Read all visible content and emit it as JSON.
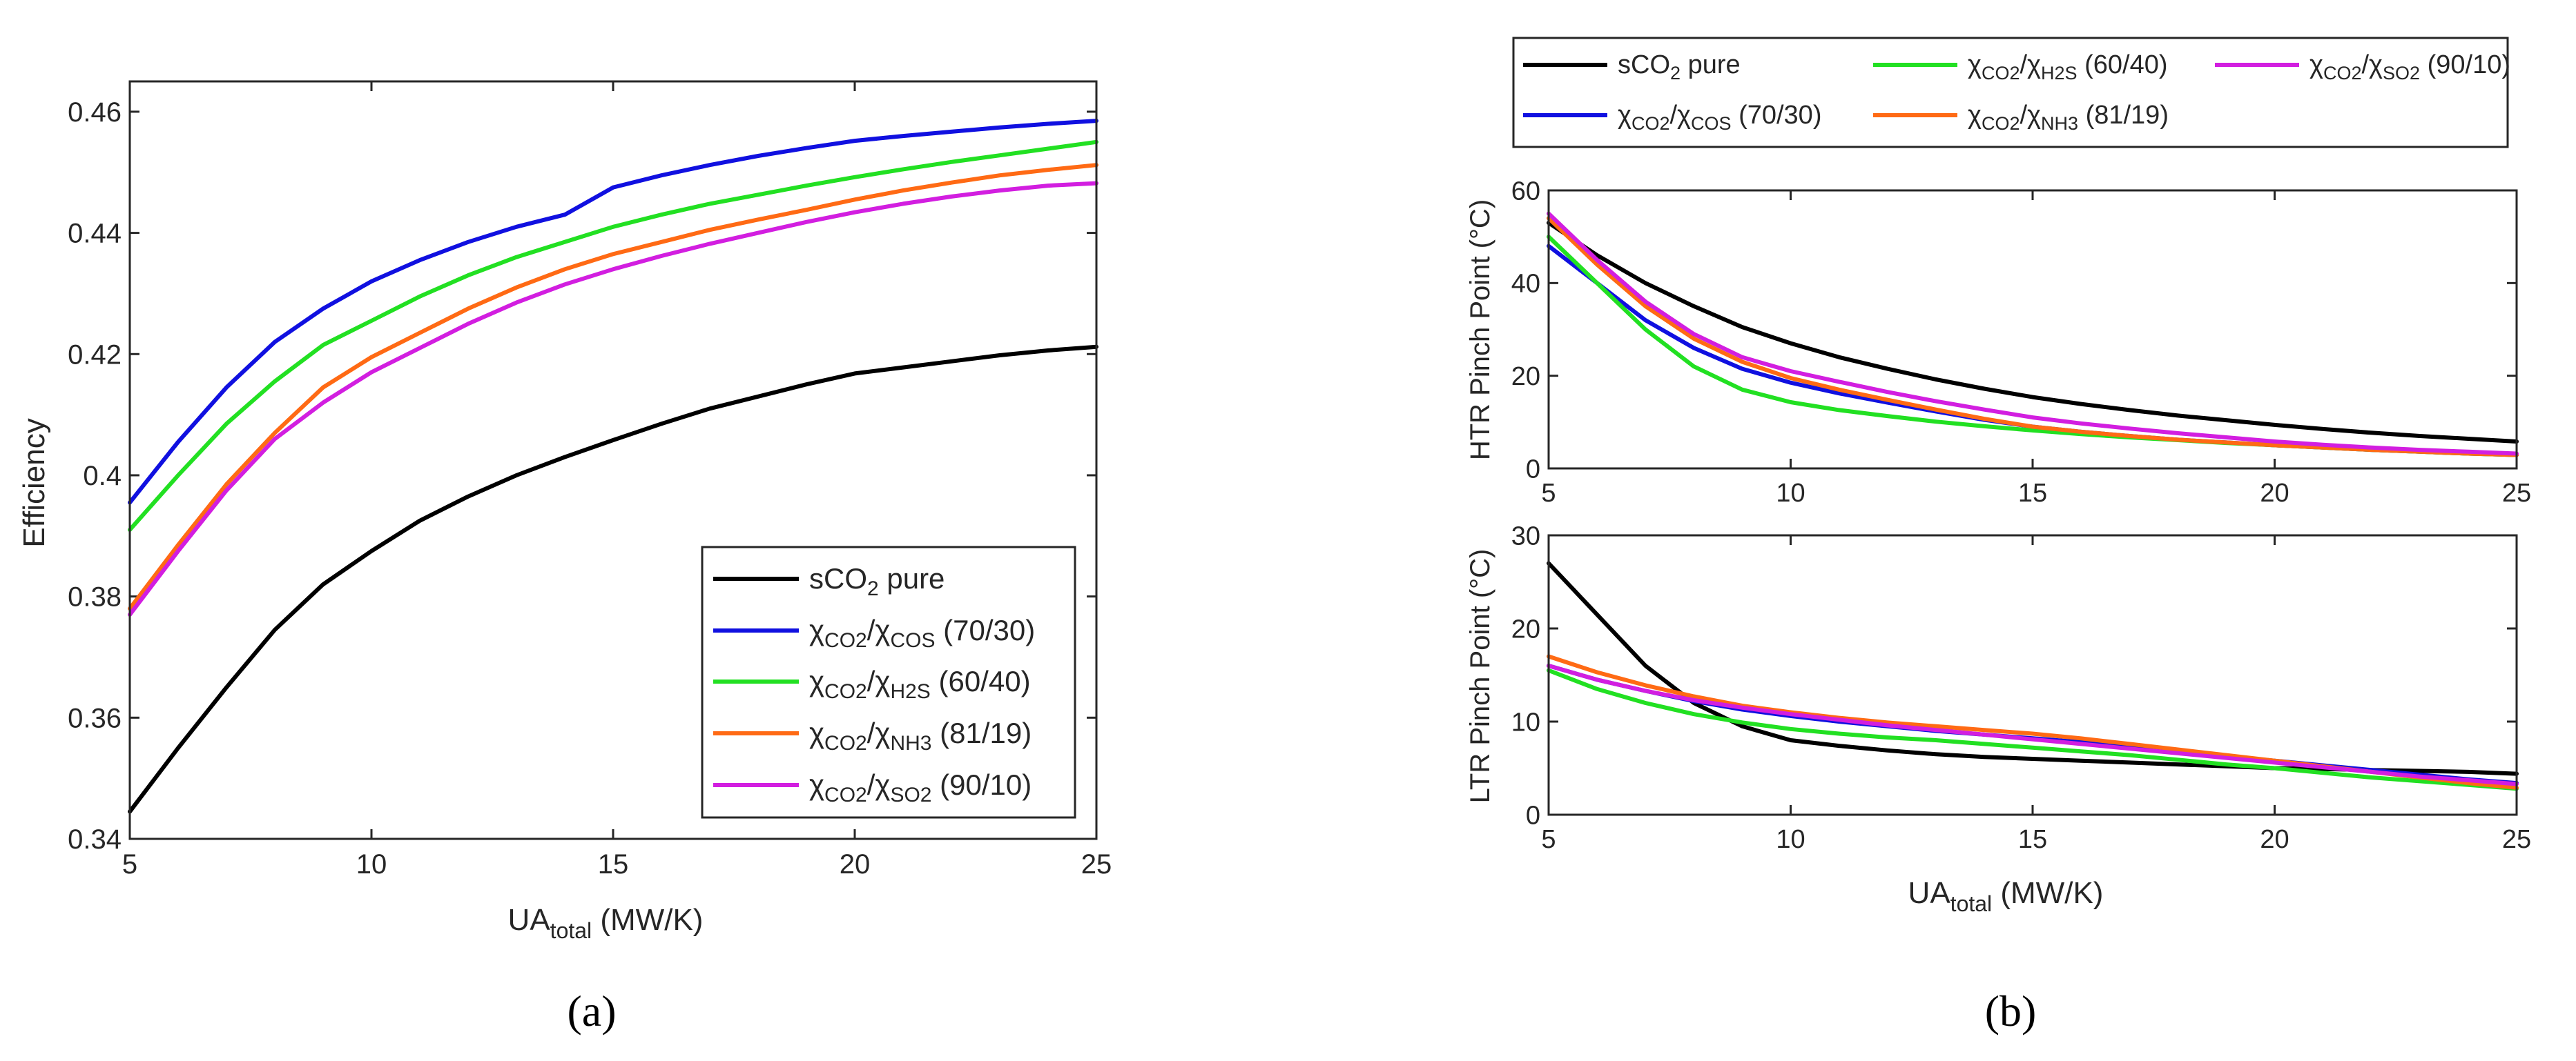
{
  "colors": {
    "sco2_pure": "#000000",
    "cos": "#1010e0",
    "h2s": "#22e022",
    "nh3": "#ff6a14",
    "so2": "#d21ee0",
    "axis": "#262626"
  },
  "series_legend": [
    {
      "key": "sco2_pure",
      "main": "sCO",
      "sub": "2",
      "tail": " pure"
    },
    {
      "key": "cos",
      "chi1": "χ",
      "sub1": "CO2",
      "slash": "/",
      "chi2": "χ",
      "sub2": "COS",
      "ratio": " (70/30)"
    },
    {
      "key": "h2s",
      "chi1": "χ",
      "sub1": "CO2",
      "slash": "/",
      "chi2": "χ",
      "sub2": "H2S",
      "ratio": " (60/40)"
    },
    {
      "key": "nh3",
      "chi1": "χ",
      "sub1": "CO2",
      "slash": "/",
      "chi2": "χ",
      "sub2": "NH3",
      "ratio": " (81/19)"
    },
    {
      "key": "so2",
      "chi1": "χ",
      "sub1": "CO2",
      "slash": "/",
      "chi2": "χ",
      "sub2": "SO2",
      "ratio": " (90/10)"
    }
  ],
  "xlabel": {
    "main": "UA",
    "sub": "total",
    "tail": " (MW/K)"
  },
  "panel_labels": {
    "a": "(a)",
    "b": "(b)"
  },
  "chart_data": [
    {
      "id": "a",
      "type": "line",
      "ylabel": "Efficiency",
      "xlim": [
        5,
        25
      ],
      "ylim": [
        0.34,
        0.465
      ],
      "xticks": [
        5,
        10,
        15,
        20,
        25
      ],
      "xtick_labels": [
        "5",
        "10",
        "15",
        "20",
        "25"
      ],
      "yticks": [
        0.34,
        0.36,
        0.38,
        0.4,
        0.42,
        0.44,
        0.46
      ],
      "ytick_labels": [
        "0.34",
        "0.36",
        "0.38",
        "0.4",
        "0.42",
        "0.44",
        "0.46"
      ],
      "legend_position": "bottom-right",
      "x": [
        5,
        6,
        7,
        8,
        9,
        10,
        11,
        12,
        13,
        14,
        15,
        16,
        17,
        18,
        19,
        20,
        21,
        22,
        23,
        24,
        25
      ],
      "series": [
        {
          "key": "sco2_pure",
          "values": [
            0.3445,
            0.355,
            0.365,
            0.3745,
            0.382,
            0.3875,
            0.3925,
            0.3965,
            0.4,
            0.403,
            0.4058,
            0.4085,
            0.411,
            0.413,
            0.415,
            0.4168,
            0.4178,
            0.4188,
            0.4198,
            0.4206,
            0.4212
          ]
        },
        {
          "key": "cos",
          "values": [
            0.3955,
            0.4055,
            0.4145,
            0.422,
            0.4275,
            0.432,
            0.4355,
            0.4385,
            0.441,
            0.443,
            0.4475,
            0.4495,
            0.4512,
            0.4527,
            0.454,
            0.4552,
            0.456,
            0.4567,
            0.4574,
            0.458,
            0.4585
          ]
        },
        {
          "key": "h2s",
          "values": [
            0.391,
            0.4,
            0.4085,
            0.4155,
            0.4215,
            0.4255,
            0.4295,
            0.433,
            0.436,
            0.4385,
            0.441,
            0.443,
            0.4448,
            0.4463,
            0.4478,
            0.4492,
            0.4505,
            0.4517,
            0.4528,
            0.4539,
            0.455
          ]
        },
        {
          "key": "nh3",
          "values": [
            0.378,
            0.3885,
            0.3985,
            0.407,
            0.4145,
            0.4195,
            0.4235,
            0.4275,
            0.431,
            0.434,
            0.4365,
            0.4385,
            0.4405,
            0.4422,
            0.4438,
            0.4455,
            0.447,
            0.4483,
            0.4495,
            0.4504,
            0.4512
          ]
        },
        {
          "key": "so2",
          "values": [
            0.377,
            0.3875,
            0.3975,
            0.406,
            0.412,
            0.417,
            0.421,
            0.425,
            0.4285,
            0.4315,
            0.434,
            0.4362,
            0.4382,
            0.44,
            0.4418,
            0.4434,
            0.4448,
            0.446,
            0.447,
            0.4478,
            0.4482
          ]
        }
      ]
    },
    {
      "id": "b1",
      "type": "line",
      "ylabel": "HTR Pinch Point (°C)",
      "xlim": [
        5,
        25
      ],
      "ylim": [
        0,
        60
      ],
      "xticks": [
        5,
        10,
        15,
        20,
        25
      ],
      "xtick_labels": [
        "5",
        "10",
        "15",
        "20",
        "25"
      ],
      "yticks": [
        0,
        20,
        40,
        60
      ],
      "ytick_labels": [
        "0",
        "20",
        "40",
        "60"
      ],
      "x": [
        5,
        6,
        7,
        8,
        9,
        10,
        11,
        12,
        13,
        14,
        15,
        16,
        17,
        18,
        19,
        20,
        21,
        22,
        23,
        24,
        25
      ],
      "series": [
        {
          "key": "sco2_pure",
          "values": [
            53,
            46,
            40,
            35,
            30.5,
            27,
            24,
            21.5,
            19.2,
            17.2,
            15.4,
            13.9,
            12.6,
            11.4,
            10.4,
            9.4,
            8.5,
            7.7,
            7,
            6.4,
            5.8
          ]
        },
        {
          "key": "cos",
          "values": [
            48,
            40,
            32,
            26,
            21.5,
            18.5,
            16.2,
            14.2,
            12.3,
            10.5,
            9,
            7.9,
            7,
            6.2,
            5.6,
            5,
            4.5,
            4,
            3.6,
            3.2,
            2.9
          ]
        },
        {
          "key": "h2s",
          "values": [
            50,
            40,
            30,
            22,
            17,
            14.3,
            12.6,
            11.3,
            10.1,
            9.1,
            8.2,
            7.4,
            6.7,
            6.1,
            5.5,
            5,
            4.5,
            4,
            3.6,
            3.2,
            2.9
          ]
        },
        {
          "key": "nh3",
          "values": [
            54,
            44,
            35,
            28,
            23,
            19.5,
            17,
            14.8,
            12.7,
            10.7,
            9,
            7.9,
            7,
            6.2,
            5.6,
            5,
            4.5,
            4,
            3.6,
            3.2,
            2.9
          ]
        },
        {
          "key": "so2",
          "values": [
            55,
            45,
            36,
            29,
            24,
            21,
            18.7,
            16.5,
            14.5,
            12.7,
            11,
            9.7,
            8.6,
            7.6,
            6.7,
            5.8,
            5.1,
            4.5,
            4,
            3.6,
            3.2
          ]
        }
      ]
    },
    {
      "id": "b2",
      "type": "line",
      "ylabel": "LTR Pinch Point (°C)",
      "xlim": [
        5,
        25
      ],
      "ylim": [
        0,
        30
      ],
      "xticks": [
        5,
        10,
        15,
        20,
        25
      ],
      "xtick_labels": [
        "5",
        "10",
        "15",
        "20",
        "25"
      ],
      "yticks": [
        0,
        10,
        20,
        30
      ],
      "ytick_labels": [
        "0",
        "10",
        "20",
        "30"
      ],
      "x": [
        5,
        6,
        7,
        8,
        9,
        10,
        11,
        12,
        13,
        14,
        15,
        16,
        17,
        18,
        19,
        20,
        21,
        22,
        23,
        24,
        25
      ],
      "series": [
        {
          "key": "sco2_pure",
          "values": [
            27,
            21.5,
            16,
            12,
            9.5,
            8,
            7.4,
            6.9,
            6.5,
            6.2,
            6,
            5.8,
            5.6,
            5.4,
            5.2,
            5,
            4.9,
            4.8,
            4.7,
            4.6,
            4.4
          ]
        },
        {
          "key": "cos",
          "values": [
            16,
            14.5,
            13.3,
            12.2,
            11.3,
            10.6,
            10,
            9.5,
            9,
            8.6,
            8.2,
            7.8,
            7.3,
            6.8,
            6.3,
            5.8,
            5.3,
            4.8,
            4.3,
            3.8,
            3.4
          ]
        },
        {
          "key": "h2s",
          "values": [
            15.5,
            13.5,
            12,
            10.8,
            9.9,
            9.2,
            8.7,
            8.3,
            8,
            7.6,
            7.2,
            6.8,
            6.4,
            5.9,
            5.4,
            5,
            4.5,
            4,
            3.6,
            3.2,
            2.8
          ]
        },
        {
          "key": "nh3",
          "values": [
            17,
            15.3,
            13.9,
            12.7,
            11.7,
            11,
            10.4,
            9.9,
            9.5,
            9.1,
            8.7,
            8.2,
            7.6,
            7,
            6.4,
            5.8,
            5.2,
            4.6,
            4,
            3.4,
            2.9
          ]
        },
        {
          "key": "so2",
          "values": [
            16,
            14.5,
            13.3,
            12.3,
            11.5,
            10.8,
            10.2,
            9.6,
            9.1,
            8.6,
            8.1,
            7.6,
            7.1,
            6.6,
            6.1,
            5.6,
            5.1,
            4.6,
            4.1,
            3.7,
            3.3
          ]
        }
      ]
    }
  ]
}
